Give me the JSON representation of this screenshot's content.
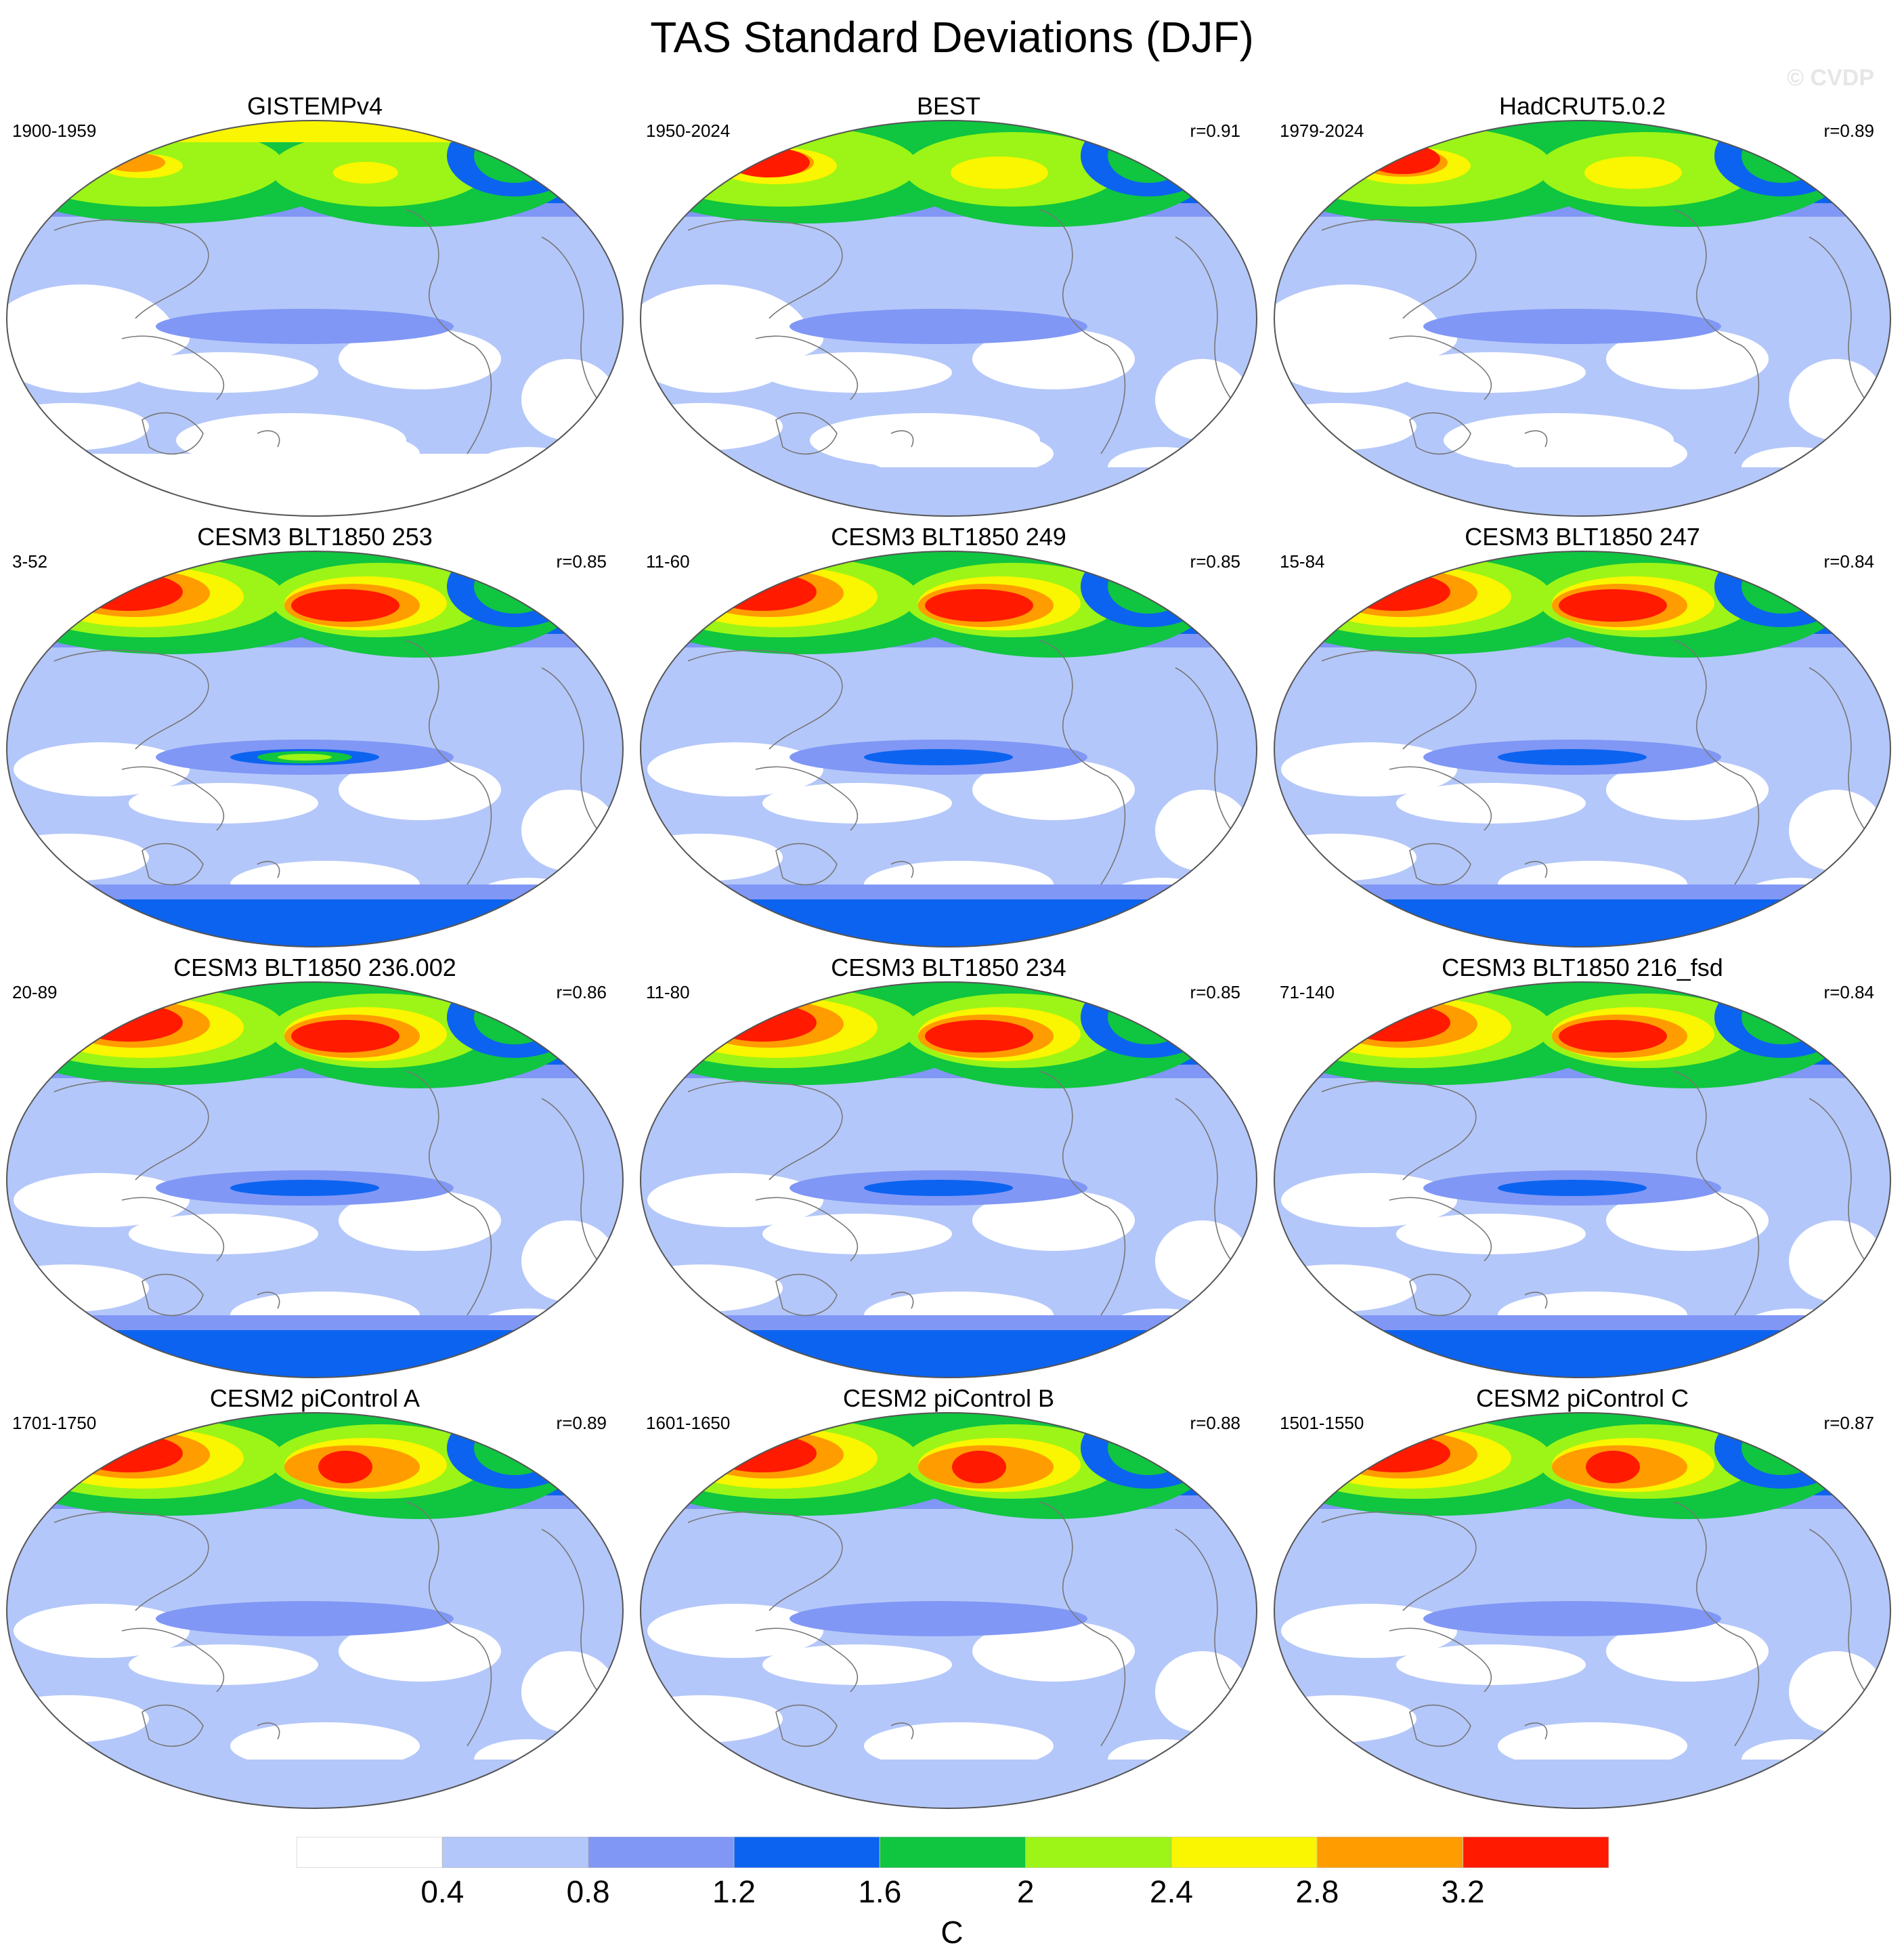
{
  "title": "TAS Standard Deviations (DJF)",
  "watermark": "© CVDP",
  "colors": {
    "levels": [
      "#ffffff",
      "#b4c7fa",
      "#8097f5",
      "#0c63f0",
      "#10c540",
      "#9cf516",
      "#faf500",
      "#ff9c00",
      "#ff1a00"
    ],
    "coastline": "#777777"
  },
  "panels": [
    {
      "title": "GISTEMPv4",
      "period": "1900-1959",
      "r": ""
    },
    {
      "title": "BEST",
      "period": "1950-2024",
      "r": "r=0.91"
    },
    {
      "title": "HadCRUT5.0.2",
      "period": "1979-2024",
      "r": "r=0.89"
    },
    {
      "title": "CESM3 BLT1850 253",
      "period": "3-52",
      "r": "r=0.85"
    },
    {
      "title": "CESM3 BLT1850 249",
      "period": "11-60",
      "r": "r=0.85"
    },
    {
      "title": "CESM3 BLT1850 247",
      "period": "15-84",
      "r": "r=0.84"
    },
    {
      "title": "CESM3 BLT1850 236.002",
      "period": "20-89",
      "r": "r=0.86"
    },
    {
      "title": "CESM3 BLT1850 234",
      "period": "11-80",
      "r": "r=0.85"
    },
    {
      "title": "CESM3 BLT1850 216_fsd",
      "period": "71-140",
      "r": "r=0.84"
    },
    {
      "title": "CESM2 piControl A",
      "period": "1701-1750",
      "r": "r=0.89"
    },
    {
      "title": "CESM2 piControl B",
      "period": "1601-1650",
      "r": "r=0.88"
    },
    {
      "title": "CESM2 piControl C",
      "period": "1501-1550",
      "r": "r=0.87"
    }
  ],
  "colorbar": {
    "labels": [
      "0.4",
      "0.8",
      "1.2",
      "1.6",
      "2",
      "2.4",
      "2.8",
      "3.2"
    ],
    "unit": "C"
  }
}
